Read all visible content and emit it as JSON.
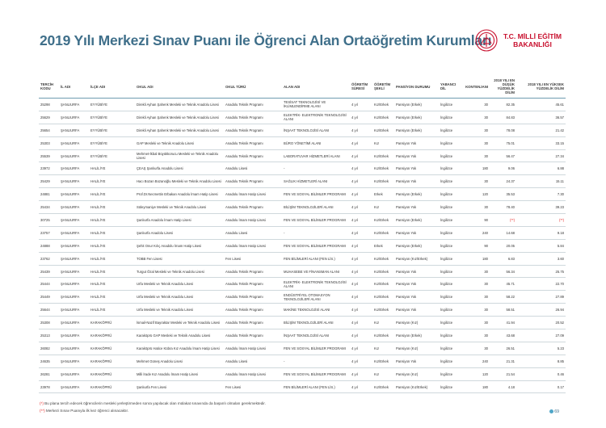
{
  "header": {
    "title": "2019 Yılı Merkezi Sınav Puanı ile Öğrenci Alan Ortaöğretim Kurumları",
    "logo_line1": "T.C. MİLLİ EĞİTİM",
    "logo_line2": "BAKANLIĞI"
  },
  "table": {
    "columns": [
      "TERCİH KODU",
      "İL ADI",
      "İLÇE ADI",
      "OKUL ADI",
      "OKUL TÜRÜ",
      "ALAN ADI",
      "ÖĞRETİM SÜRESİ",
      "ÖĞRETİM ŞEKLİ",
      "PANSİYON DURUMU",
      "YABANCI DİL",
      "KONTENJANI",
      "2018 YILI EN DÜŞÜK YÜZDELİK DİLİM",
      "2018 YILI EN YÜKSEK YÜZDELİK DİLİM"
    ],
    "rows": [
      [
        "25298",
        "ŞANLIURFA",
        "EYYÜBİYE",
        "Direkli Ayhan Şahenk Mesleki ve Teknik Anadolu Lisesi",
        "Anadolu Teknik Programı",
        "TESİSAT TEKNOLOJİSİ VE İKLİMLENDİRME ALANI",
        "4 yıl",
        "Kız/Erkek",
        "Pansiyon (Erkek)",
        "İngilizce",
        "30",
        "82.35",
        "45.61"
      ],
      [
        "25629",
        "ŞANLIURFA",
        "EYYÜBİYE",
        "Direkli Ayhan Şahenk Mesleki ve Teknik Anadolu Lisesi",
        "Anadolu Teknik Programı",
        "ELEKTRİK- ELEKTRONİK TEKNOLOJİSİ ALANI",
        "4 yıl",
        "Kız/Erkek",
        "Pansiyon (Erkek)",
        "İngilizce",
        "30",
        "84.83",
        "36.57"
      ],
      [
        "25654",
        "ŞANLIURFA",
        "EYYÜBİYE",
        "Direkli Ayhan Şahenk Mesleki ve Teknik Anadolu Lisesi",
        "Anadolu Teknik Programı",
        "İNŞAAT TEKNOLOJİSİ ALANI",
        "4 yıl",
        "Kız/Erkek",
        "Pansiyon (Erkek)",
        "İngilizce",
        "30",
        "78.08",
        "21.42"
      ],
      [
        "25303",
        "ŞANLIURFA",
        "EYYÜBİYE",
        "GAP Mesleki ve Teknik Anadolu Lisesi",
        "Anadolu Teknik Programı",
        "BÜRO YÖNETİMİ ALANI",
        "4 yıl",
        "Kız",
        "Pansiyon Yok",
        "İngilizce",
        "30",
        "75.01",
        "33.15"
      ],
      [
        "25539",
        "ŞANLIURFA",
        "EYYÜBİYE",
        "Mehmet-İkbal Büyükkorucu Mesleki ve Teknik Anadolu Lisesi",
        "Anadolu Teknik Programı",
        "LABORATUVAR HİZMETLERİ ALANI",
        "4 yıl",
        "Kız/Erkek",
        "Pansiyon Yok",
        "İngilizce",
        "30",
        "56.47",
        "27.34"
      ],
      [
        "23972",
        "ŞANLIURFA",
        "HALİLİYE",
        "ÇEAŞ Şanlıurfa Anadolu Lisesi",
        "Anadolu Lisesi",
        "-",
        "4 yıl",
        "Kız/Erkek",
        "Pansiyon Yok",
        "İngilizce",
        "180",
        "9.06",
        "6.88"
      ],
      [
        "25429",
        "ŞANLIURFA",
        "HALİLİYE",
        "Hacı Bozan Bozanoğlu Mesleki ve Teknik Anadolu Lisesi",
        "Anadolu Teknik Programı",
        "SAĞLIK HİZMETLERİ ALANI",
        "4 yıl",
        "Kız/Erkek",
        "Pansiyon Yok",
        "İngilizce",
        "30",
        "24.37",
        "15.11"
      ],
      [
        "24881",
        "ŞANLIURFA",
        "HALİLİYE",
        "Prof.Dr.Necmettin Erbakan Anadolu İmam Hatip Lisesi",
        "Anadolu İmam Hatip Lisesi",
        "FEN VE SOSYAL BİLİMLER PROGRAMI",
        "4 yıl",
        "Erkek",
        "Pansiyon (Erkek)",
        "İngilizce",
        "120",
        "35.53",
        "7.30"
      ],
      [
        "25434",
        "ŞANLIURFA",
        "HALİLİYE",
        "Süleymaniye Mesleki ve Teknik Anadolu Lisesi",
        "Anadolu Teknik Programı",
        "BİLİŞİM TEKNOLOJİLERİ ALANI",
        "4 yıl",
        "Kız",
        "Pansiyon Yok",
        "İngilizce",
        "30",
        "78.40",
        "39.23"
      ],
      [
        "30725",
        "ŞANLIURFA",
        "HALİLİYE",
        "Şanlıurfa Anadolu İmam Hatip Lisesi",
        "Anadolu İmam Hatip Lisesi",
        "FEN VE SOSYAL BİLİMLER PROGRAMI",
        "4 yıl",
        "Kız/Erkek",
        "Pansiyon (Erkek)",
        "İngilizce",
        "90",
        "(**)",
        "(**)"
      ],
      [
        "23757",
        "ŞANLIURFA",
        "HALİLİYE",
        "Şanlıurfa Anadolu Lisesi",
        "Anadolu Lisesi",
        "-",
        "4 yıl",
        "Kız/Erkek",
        "Pansiyon Yok",
        "İngilizce",
        "240",
        "14.68",
        "9.18"
      ],
      [
        "24888",
        "ŞANLIURFA",
        "HALİLİYE",
        "Şehit Onur Kılıç Anadolu İmam Hatip Lisesi",
        "Anadolu İmam Hatip Lisesi",
        "FEN VE SOSYAL BİLİMLER PROGRAMI",
        "4 yıl",
        "Erkek",
        "Pansiyon (Erkek)",
        "İngilizce",
        "90",
        "20.05",
        "5.84"
      ],
      [
        "23762",
        "ŞANLIURFA",
        "HALİLİYE",
        "TOBB Fen Lisesi",
        "Fen Lisesi",
        "FEN BİLİMLERİ ALANI (FEN LİS.)",
        "4 yıl",
        "Kız/Erkek",
        "Pansiyon (Kız/Erkek)",
        "İngilizce",
        "180",
        "6.83",
        "3.60"
      ],
      [
        "25439",
        "ŞANLIURFA",
        "HALİLİYE",
        "Turgut Özal Mesleki ve Teknik Anadolu Lisesi",
        "Anadolu Teknik Programı",
        "MUHASEBE VE FİNANSMAN ALANI",
        "4 yıl",
        "Kız/Erkek",
        "Pansiyon Yok",
        "İngilizce",
        "30",
        "56.34",
        "25.75"
      ],
      [
        "25444",
        "ŞANLIURFA",
        "HALİLİYE",
        "Urfa Mesleki ve Teknik Anadolu Lisesi",
        "Anadolu Teknik Programı",
        "ELEKTRİK- ELEKTRONİK TEKNOLOJİSİ ALANI",
        "4 yıl",
        "Kız/Erkek",
        "Pansiyon Yok",
        "İngilizce",
        "30",
        "45.71",
        "22.70"
      ],
      [
        "25449",
        "ŞANLIURFA",
        "HALİLİYE",
        "Urfa Mesleki ve Teknik Anadolu Lisesi",
        "Anadolu Teknik Programı",
        "ENDÜSTRİYEL OTOMASYON TEKNOLOJİLERİ ALANI",
        "4 yıl",
        "Kız/Erkek",
        "Pansiyon Yok",
        "İngilizce",
        "30",
        "58.22",
        "27.89"
      ],
      [
        "25644",
        "ŞANLIURFA",
        "HALİLİYE",
        "Urfa Mesleki ve Teknik Anadolu Lisesi",
        "Anadolu Teknik Programı",
        "MAKİNE TEKNOLOJİSİ ALANI",
        "4 yıl",
        "Kız/Erkek",
        "Pansiyon Yok",
        "İngilizce",
        "30",
        "58.51",
        "26.94"
      ],
      [
        "25308",
        "ŞANLIURFA",
        "KARAKÖPRÜ",
        "İsmail-Nazif Bayraktar Mesleki ve Teknik Anadolu Lisesi",
        "Anadolu Teknik Programı",
        "BİLİŞİM TEKNOLOJİLERİ ALANI",
        "4 yıl",
        "Kız",
        "Pansiyon (Kız)",
        "İngilizce",
        "30",
        "41.94",
        "20.52"
      ],
      [
        "25313",
        "ŞANLIURFA",
        "KARAKÖPRÜ",
        "Karaköprü GAP Mesleki ve Teknik Anadolu Lisesi",
        "Anadolu Teknik Programı",
        "İNŞAAT TEKNOLOJİSİ ALANI",
        "4 yıl",
        "Kız/Erkek",
        "Pansiyon (Erkek)",
        "İngilizce",
        "30",
        "43.68",
        "27.09"
      ],
      [
        "26082",
        "ŞANLIURFA",
        "KARAKÖPRÜ",
        "Karaköprü Hatice Kübra Kız Anadolu İmam Hatip Lisesi",
        "Anadolu İmam Hatip Lisesi",
        "FEN VE SOSYAL BİLİMLER PROGRAMI",
        "4 yıl",
        "Kız",
        "Pansiyon (Kız)",
        "İngilizce",
        "30",
        "26.51",
        "5.23"
      ],
      [
        "24635",
        "ŞANLIURFA",
        "KARAKÖPRÜ",
        "Mehmet Güneş Anadolu Lisesi",
        "Anadolu Lisesi",
        "-",
        "4 yıl",
        "Kız/Erkek",
        "Pansiyon Yok",
        "İngilizce",
        "240",
        "21.31",
        "8.85"
      ],
      [
        "26281",
        "ŞANLIURFA",
        "KARAKÖPRÜ",
        "Milli İrade Kız Anadolu İmam Hatip Lisesi",
        "Anadolu İmam Hatip Lisesi",
        "FEN VE SOSYAL BİLİMLER PROGRAMI",
        "4 yıl",
        "Kız",
        "Pansiyon (Kız)",
        "İngilizce",
        "120",
        "21.54",
        "0.46"
      ],
      [
        "23978",
        "ŞANLIURFA",
        "KARAKÖPRÜ",
        "Şanlıurfa Fen Lisesi",
        "Fen Lisesi",
        "FEN BİLİMLERİ ALANI (FEN LİS.)",
        "4 yıl",
        "Kız/Erkek",
        "Pansiyon (Kız/Erkek)",
        "İngilizce",
        "180",
        "4.18",
        "0.17"
      ]
    ]
  },
  "footnotes": {
    "note1_mark": "(*)",
    "note1_text": " Bu plana tercih edecek öğrencilerin mesleki yerleştirmeden sonra yapılacak olan mülakat sınavında da başarılı olmaları gerekmektedir.",
    "note2_mark": "(**)",
    "note2_text": " Merkezi Sınav Puanıyla ilk kez öğrenci alınacaktır."
  },
  "page_number": "69",
  "colors": {
    "title": "#3f6f8a",
    "accent_red": "#e52421",
    "logo_red": "#c8102e"
  }
}
